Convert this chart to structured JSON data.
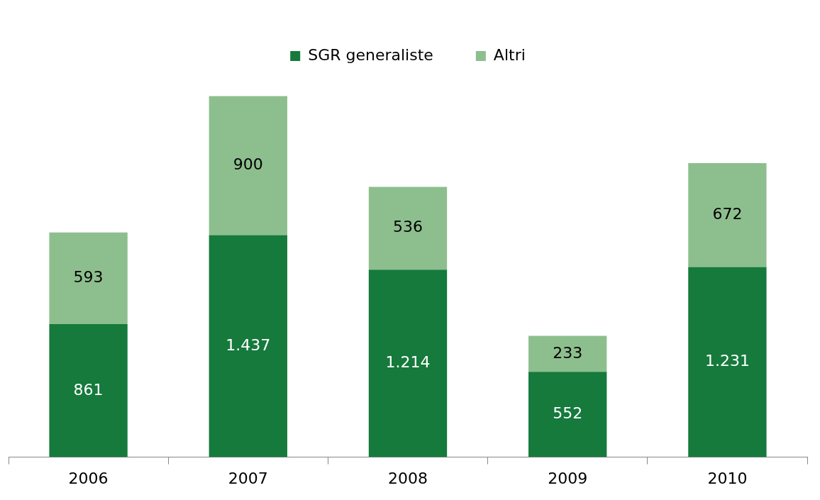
{
  "chart_data": {
    "type": "bar",
    "stacked": true,
    "categories": [
      "2006",
      "2007",
      "2008",
      "2009",
      "2010"
    ],
    "series": [
      {
        "name": "SGR generaliste",
        "color": "#157a3c",
        "values": [
          861,
          1437,
          1214,
          552,
          1231
        ],
        "value_labels": [
          "861",
          "1.437",
          "1.214",
          "552",
          "1.231"
        ]
      },
      {
        "name": "Altri",
        "color": "#8dbf8e",
        "values": [
          593,
          900,
          536,
          233,
          672
        ],
        "value_labels": [
          "593",
          "900",
          "536",
          "233",
          "672"
        ]
      }
    ],
    "legend": "top",
    "grid": false
  }
}
